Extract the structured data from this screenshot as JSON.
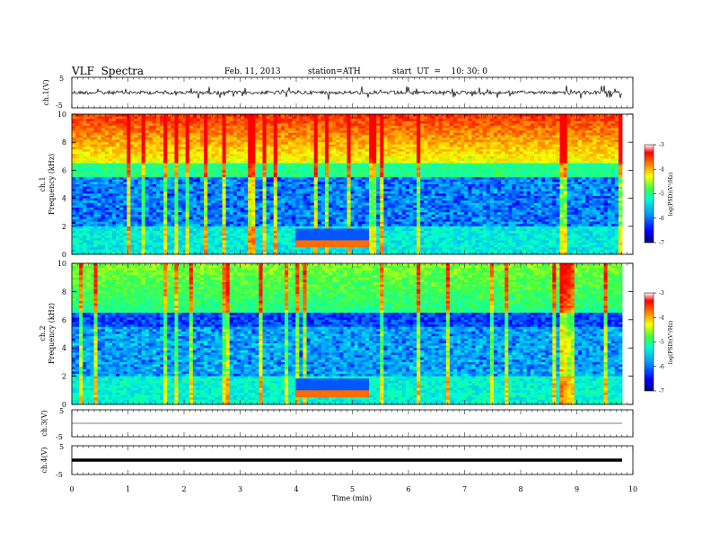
{
  "header": {
    "title": "VLF  Spectra",
    "date": "Feb. 11, 2013",
    "station": "station=ATH",
    "start": "start  UT  =    10: 30: 0"
  },
  "chart_data": [
    {
      "type": "line",
      "panel": "ch1-waveform",
      "ylabel": "ch.1(V)",
      "ylim": [
        -5,
        5
      ],
      "y_ticks": [
        "5",
        "-5"
      ],
      "note_values": "dense VLF waveform trace, roughly centered at 0 V with spikes to about +/-1.5 V",
      "xlim": [
        0,
        9.8
      ]
    },
    {
      "type": "heatmap",
      "panel": "ch1-spectrogram",
      "ylabel": "Frequency  (kHz)",
      "channel_label": "ch.1",
      "ylim": [
        0,
        10
      ],
      "y_ticks": [
        "0",
        "2",
        "4",
        "6",
        "8",
        "10"
      ],
      "xlim": [
        0,
        9.8
      ],
      "colorbar": {
        "label": "log(PSD)(V²/Hz)",
        "range": [
          -7,
          -3
        ],
        "ticks": [
          "-3",
          "-4",
          "-5",
          "-6",
          "-7"
        ]
      },
      "features": {
        "high_power_top_khz": [
          6.5,
          10
        ],
        "low_power_band_khz": [
          2,
          5.5
        ],
        "event_band": {
          "t_start_min": 4.0,
          "t_end_min": 5.3,
          "freq_khz": 0.8
        }
      }
    },
    {
      "type": "heatmap",
      "panel": "ch2-spectrogram",
      "ylabel": "Frequency  (kHz)",
      "channel_label": "ch.2",
      "ylim": [
        0,
        10
      ],
      "y_ticks": [
        "0",
        "2",
        "4",
        "6",
        "8",
        "10"
      ],
      "xlim": [
        0,
        9.8
      ],
      "colorbar": {
        "label": "log(PSD)(V²/Hz)",
        "range": [
          -7,
          -3
        ],
        "ticks": [
          "-3",
          "-4",
          "-5",
          "-6",
          "-7"
        ]
      },
      "features": {
        "event_band": {
          "t_start_min": 4.0,
          "t_end_min": 5.3,
          "freq_khz": 0.8
        }
      }
    },
    {
      "type": "line",
      "panel": "ch3-waveform",
      "ylabel": "ch.3(V)",
      "ylim": [
        -5,
        5
      ],
      "y_ticks": [
        "5",
        "-5"
      ],
      "note_values": "flat trace near 0 V",
      "xlim": [
        0,
        9.8
      ]
    },
    {
      "type": "line",
      "panel": "ch4-waveform",
      "ylabel": "ch.4(V)",
      "ylim": [
        -5,
        5
      ],
      "y_ticks": [
        "5",
        "-5"
      ],
      "note_values": "thick flat trace near 0 V",
      "xlim": [
        0,
        9.8
      ]
    }
  ],
  "x_axis": {
    "label": "Time  (min)",
    "range": [
      0,
      10
    ],
    "ticks": [
      "0",
      "1",
      "2",
      "3",
      "4",
      "5",
      "6",
      "7",
      "8",
      "9",
      "10"
    ]
  },
  "colors": {
    "colormap": [
      "#000080",
      "#0000ff",
      "#00a0ff",
      "#00ffd0",
      "#40ff40",
      "#ffff00",
      "#ff8000",
      "#ff0000",
      "#ffffff"
    ]
  }
}
